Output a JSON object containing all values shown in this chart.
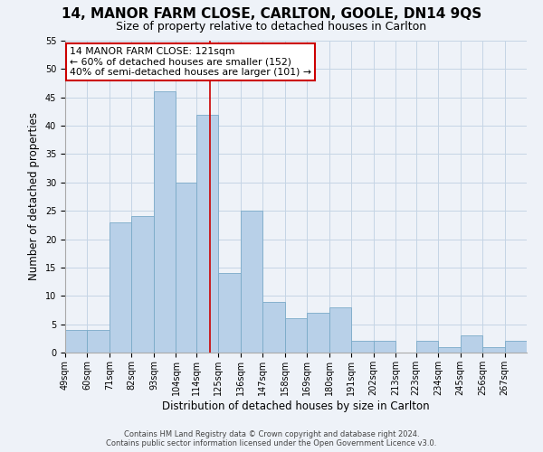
{
  "title": "14, MANOR FARM CLOSE, CARLTON, GOOLE, DN14 9QS",
  "subtitle": "Size of property relative to detached houses in Carlton",
  "xlabel": "Distribution of detached houses by size in Carlton",
  "ylabel": "Number of detached properties",
  "bar_labels": [
    "49sqm",
    "60sqm",
    "71sqm",
    "82sqm",
    "93sqm",
    "104sqm",
    "114sqm",
    "125sqm",
    "136sqm",
    "147sqm",
    "158sqm",
    "169sqm",
    "180sqm",
    "191sqm",
    "202sqm",
    "213sqm",
    "223sqm",
    "234sqm",
    "245sqm",
    "256sqm",
    "267sqm"
  ],
  "bar_values": [
    4,
    4,
    23,
    24,
    46,
    30,
    42,
    14,
    25,
    9,
    6,
    7,
    8,
    2,
    2,
    0,
    2,
    1,
    3,
    1,
    2
  ],
  "bin_edges": [
    49,
    60,
    71,
    82,
    93,
    104,
    114,
    125,
    136,
    147,
    158,
    169,
    180,
    191,
    202,
    213,
    223,
    234,
    245,
    256,
    267,
    278
  ],
  "bar_color": "#b8d0e8",
  "bar_edge_color": "#7aaac8",
  "annotation_text": "14 MANOR FARM CLOSE: 121sqm\n← 60% of detached houses are smaller (152)\n40% of semi-detached houses are larger (101) →",
  "annotation_box_color": "#ffffff",
  "annotation_box_edge": "#cc0000",
  "property_line_x": 121,
  "property_line_color": "#cc0000",
  "ylim": [
    0,
    55
  ],
  "yticks": [
    0,
    5,
    10,
    15,
    20,
    25,
    30,
    35,
    40,
    45,
    50,
    55
  ],
  "footer_line1": "Contains HM Land Registry data © Crown copyright and database right 2024.",
  "footer_line2": "Contains public sector information licensed under the Open Government Licence v3.0.",
  "background_color": "#eef2f8",
  "grid_color": "#c5d5e5",
  "title_fontsize": 11,
  "subtitle_fontsize": 9,
  "tick_fontsize": 7,
  "ylabel_fontsize": 8.5,
  "xlabel_fontsize": 8.5,
  "annotation_fontsize": 7.8
}
